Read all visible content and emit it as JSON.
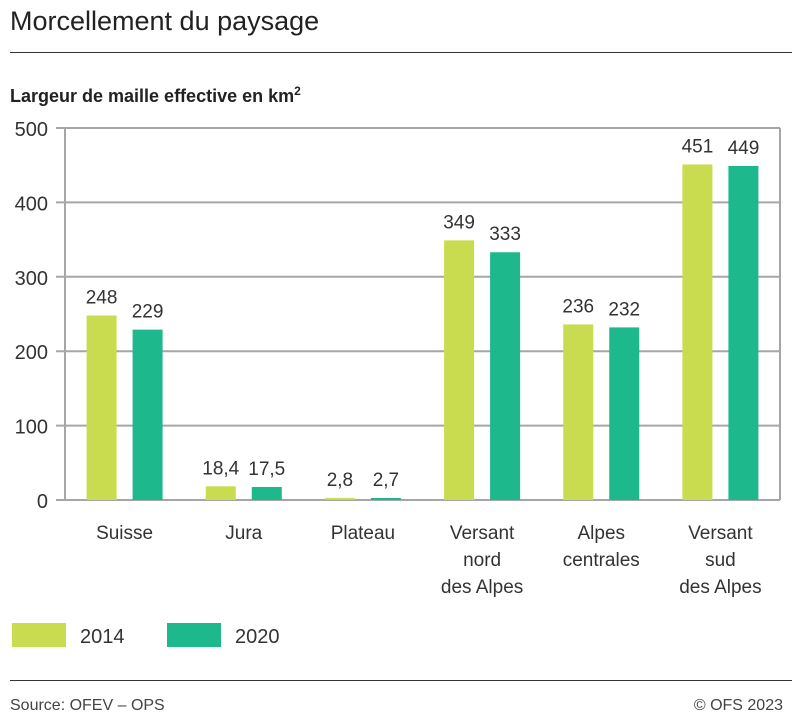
{
  "title": "Morcellement du paysage",
  "footer": {
    "source": "Source: OFEV – OPS",
    "copyright": "© OFS 2023"
  },
  "colors": {
    "2014": "#c9dc4f",
    "2020": "#1db88c",
    "grid": "#a6a6a6"
  },
  "chart_data": {
    "type": "bar",
    "title": "Morcellement du paysage",
    "ylabel": "Largeur de maille effective en km²",
    "ylim": [
      0,
      500
    ],
    "yticks": [
      0,
      100,
      200,
      300,
      400,
      500
    ],
    "grid": true,
    "legend": "bottom-left",
    "categories": [
      [
        "Suisse"
      ],
      [
        "Jura"
      ],
      [
        "Plateau"
      ],
      [
        "Versant",
        "nord",
        "des Alpes"
      ],
      [
        "Alpes",
        "centrales"
      ],
      [
        "Versant",
        "sud",
        "des Alpes"
      ]
    ],
    "series": [
      {
        "name": "2014",
        "values": [
          248,
          18.4,
          2.8,
          349,
          236,
          451
        ],
        "labels": [
          "248",
          "18,4",
          "2,8",
          "349",
          "236",
          "451"
        ]
      },
      {
        "name": "2020",
        "values": [
          229,
          17.5,
          2.7,
          333,
          232,
          449
        ],
        "labels": [
          "229",
          "17,5",
          "2,7",
          "333",
          "232",
          "449"
        ]
      }
    ]
  }
}
